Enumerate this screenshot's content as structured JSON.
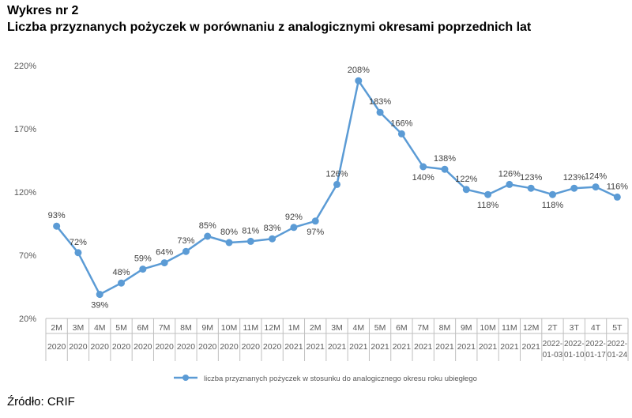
{
  "header": {
    "label": "Wykres nr 2",
    "title": "Liczba przyznanych pożyczek w porównaniu z analogicznymi okresami poprzednich lat"
  },
  "source": "Źródło: CRIF",
  "chart_data": {
    "type": "line",
    "yticks": [
      "220%",
      "170%",
      "120%",
      "70%",
      "20%"
    ],
    "ylim": [
      20,
      220
    ],
    "grid": false,
    "legend_position": "bottom",
    "categories": [
      {
        "top": "2M",
        "bottom": "2020"
      },
      {
        "top": "3M",
        "bottom": "2020"
      },
      {
        "top": "4M",
        "bottom": "2020"
      },
      {
        "top": "5M",
        "bottom": "2020"
      },
      {
        "top": "6M",
        "bottom": "2020"
      },
      {
        "top": "7M",
        "bottom": "2020"
      },
      {
        "top": "8M",
        "bottom": "2020"
      },
      {
        "top": "9M",
        "bottom": "2020"
      },
      {
        "top": "10M",
        "bottom": "2020"
      },
      {
        "top": "11M",
        "bottom": "2020"
      },
      {
        "top": "12M",
        "bottom": "2020"
      },
      {
        "top": "1M",
        "bottom": "2021"
      },
      {
        "top": "2M",
        "bottom": "2021"
      },
      {
        "top": "3M",
        "bottom": "2021"
      },
      {
        "top": "4M",
        "bottom": "2021"
      },
      {
        "top": "5M",
        "bottom": "2021"
      },
      {
        "top": "6M",
        "bottom": "2021"
      },
      {
        "top": "7M",
        "bottom": "2021"
      },
      {
        "top": "8M",
        "bottom": "2021"
      },
      {
        "top": "9M",
        "bottom": "2021"
      },
      {
        "top": "10M",
        "bottom": "2021"
      },
      {
        "top": "11M",
        "bottom": "2021"
      },
      {
        "top": "12M",
        "bottom": "2021"
      },
      {
        "top": "2T",
        "bottom": "2022-01-03"
      },
      {
        "top": "3T",
        "bottom": "2022-01-10"
      },
      {
        "top": "4T",
        "bottom": "2022-01-17"
      },
      {
        "top": "5T",
        "bottom": "2022-01-24"
      }
    ],
    "series": [
      {
        "name": "liczba przyznanych pożyczek w stosunku do analogicznego okresu roku ubiegłego",
        "color": "#5b9bd5",
        "values": [
          93,
          72,
          39,
          48,
          59,
          64,
          73,
          85,
          80,
          81,
          83,
          92,
          97,
          126,
          208,
          183,
          166,
          140,
          138,
          122,
          118,
          126,
          123,
          118,
          123,
          124,
          116
        ],
        "labels": [
          "93%",
          "72%",
          "39%",
          "48%",
          "59%",
          "64%",
          "73%",
          "85%",
          "80%",
          "81%",
          "83%",
          "92%",
          "97%",
          "126%",
          "208%",
          "183%",
          "166%",
          "140%",
          "138%",
          "122%",
          "118%",
          "126%",
          "123%",
          "118%",
          "123%",
          "124%",
          "116%"
        ]
      }
    ]
  }
}
